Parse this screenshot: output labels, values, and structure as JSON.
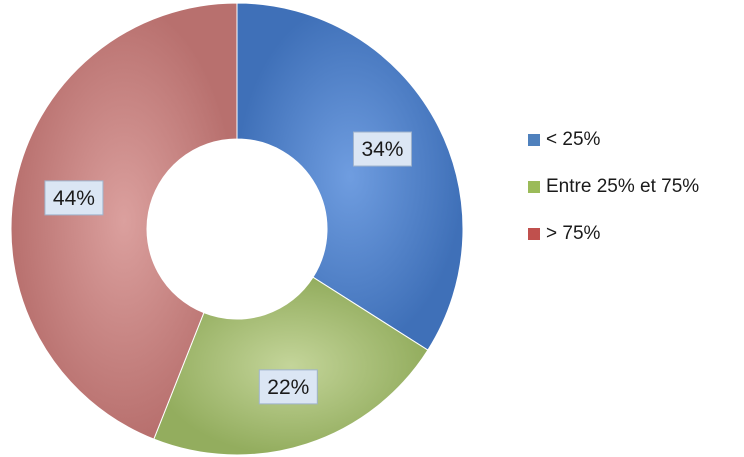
{
  "chart_data": {
    "type": "pie",
    "donut": true,
    "title": "",
    "legend_position": "right",
    "categories": [
      "< 25%",
      "Entre 25% et 75%",
      "> 75%"
    ],
    "values": [
      34,
      22,
      44
    ],
    "data_labels": [
      "34%",
      "22%",
      "44%"
    ],
    "colors": [
      "#4f81bd",
      "#9bbb59",
      "#c0504d"
    ],
    "slice_colors": [
      "#4a7cc6",
      "#a6bf71",
      "#c97c7a"
    ]
  }
}
